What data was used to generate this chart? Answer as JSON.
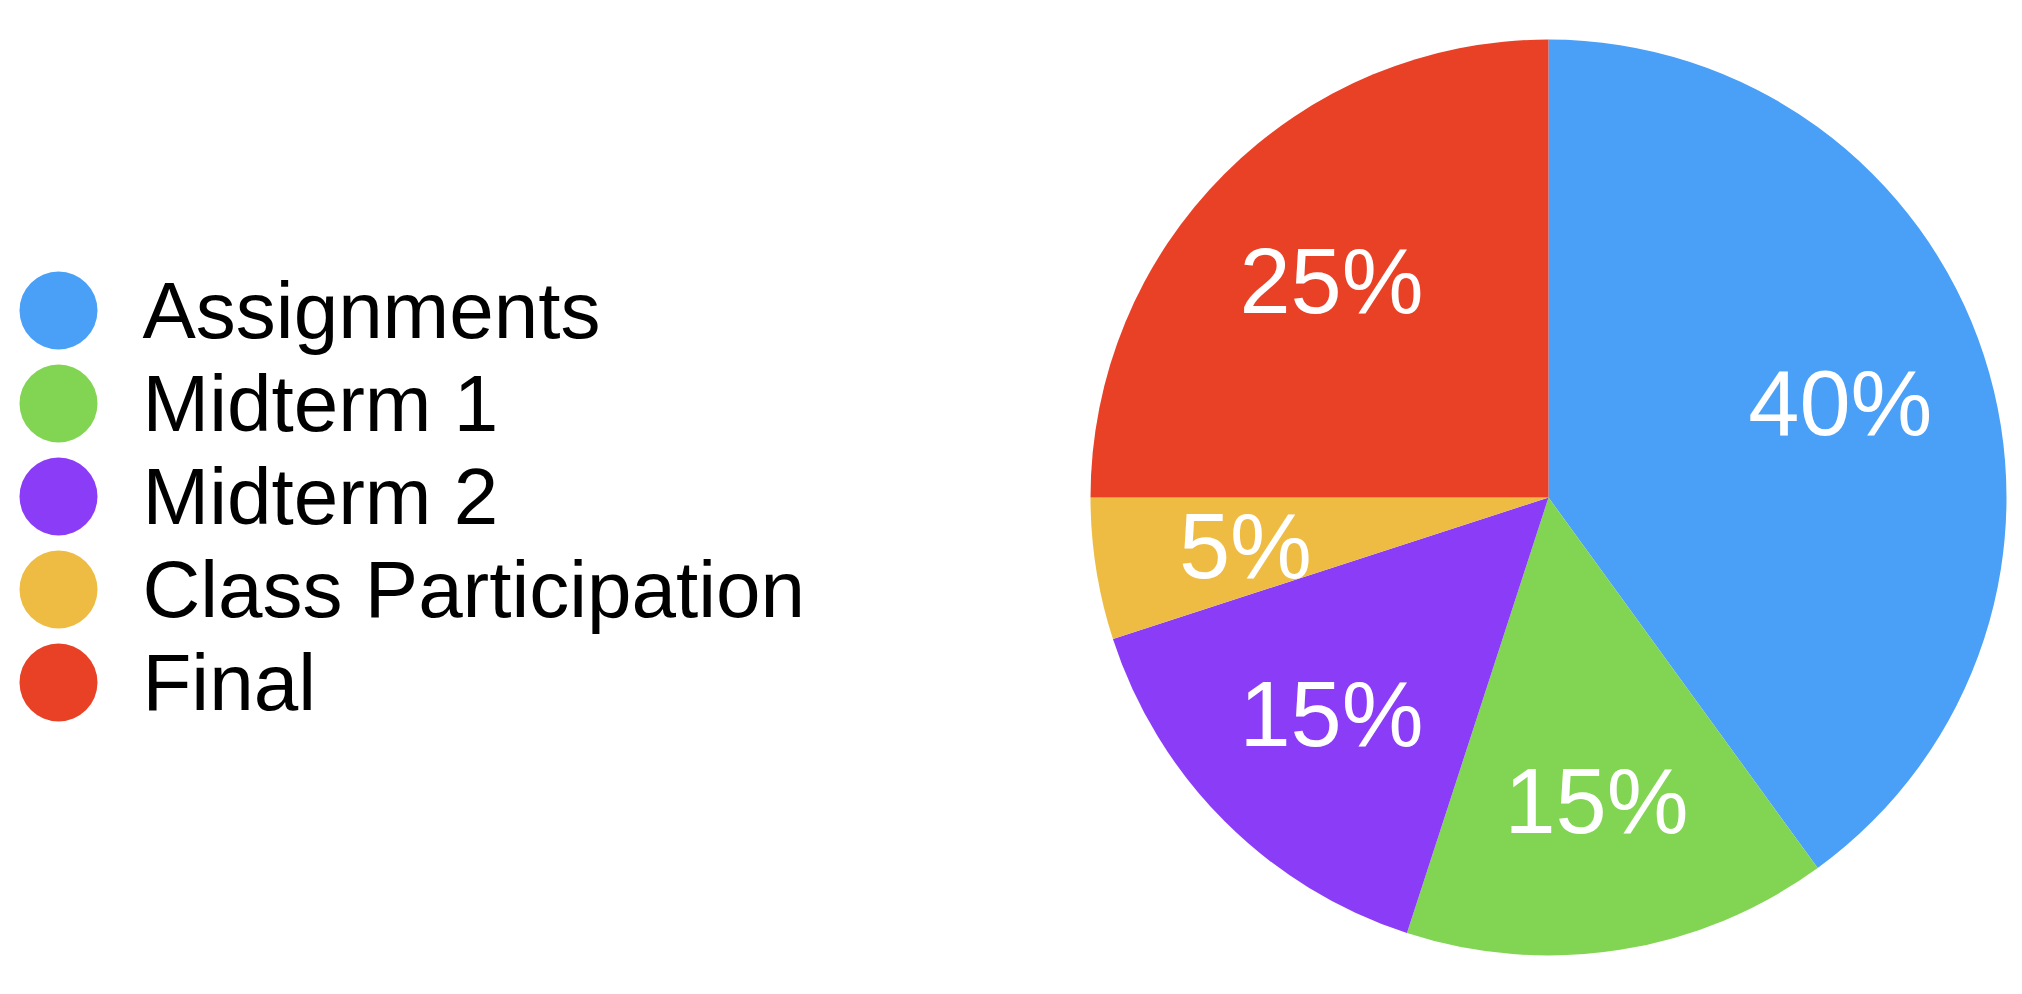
{
  "chart_data": {
    "type": "pie",
    "categories": [
      "Assignments",
      "Midterm 1",
      "Midterm 2",
      "Class Participation",
      "Final"
    ],
    "values": [
      40,
      15,
      15,
      5,
      25
    ],
    "colors": [
      "#4a9ff7",
      "#82d552",
      "#8b3cf6",
      "#eebc42",
      "#e94126"
    ],
    "value_labels": [
      "40%",
      "15%",
      "15%",
      "5%",
      "25%"
    ],
    "legend": "left"
  }
}
